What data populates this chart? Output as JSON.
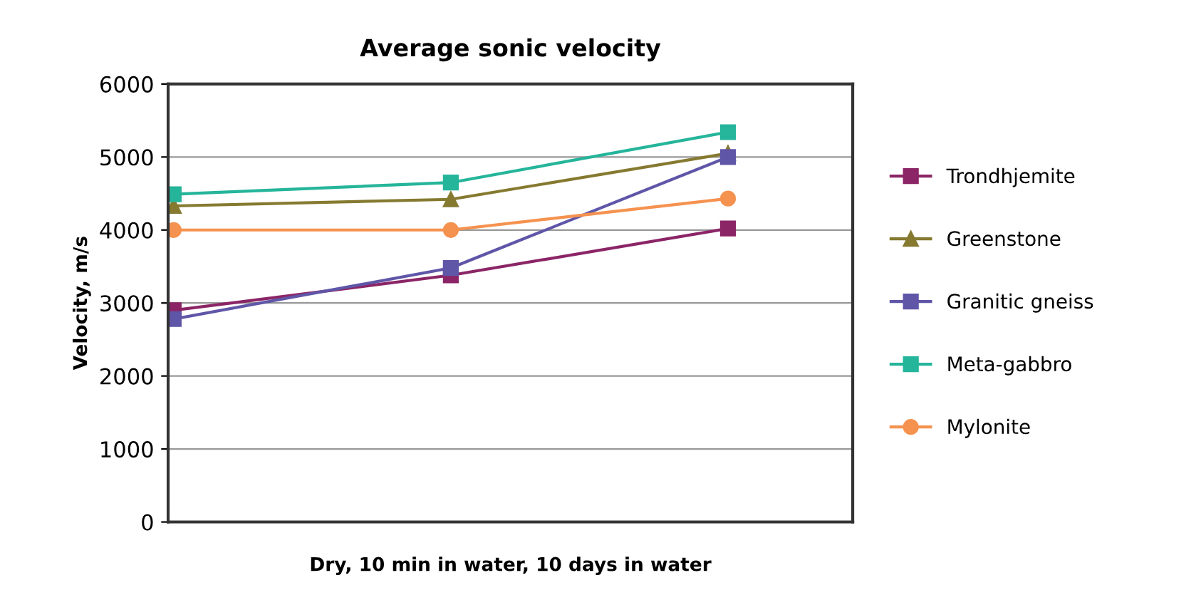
{
  "chart_data": {
    "type": "line",
    "title": "Average sonic velocity",
    "xlabel": "Dry, 10 min in water, 10 days in water",
    "ylabel": "Velocity, m/s",
    "categories": [
      null,
      null,
      null
    ],
    "series": [
      {
        "name": "Trondhjemite",
        "color": "#8b2566",
        "marker": "square",
        "values": [
          2900,
          3380,
          4020
        ]
      },
      {
        "name": "Greenstone",
        "color": "#857a30",
        "marker": "triangle",
        "values": [
          4330,
          4420,
          5050
        ]
      },
      {
        "name": "Granitic gneiss",
        "color": "#5f56a8",
        "marker": "square",
        "values": [
          2780,
          3480,
          5000
        ]
      },
      {
        "name": "Meta-gabbro",
        "color": "#25b59a",
        "marker": "square",
        "values": [
          4490,
          4650,
          5340
        ]
      },
      {
        "name": "Mylonite",
        "color": "#f5924f",
        "marker": "circle",
        "values": [
          4000,
          4000,
          4430
        ]
      }
    ],
    "ylim": [
      0,
      6000
    ],
    "yticks": [
      0,
      1000,
      2000,
      3000,
      4000,
      5000,
      6000
    ],
    "grid": "y",
    "legend": "right"
  }
}
